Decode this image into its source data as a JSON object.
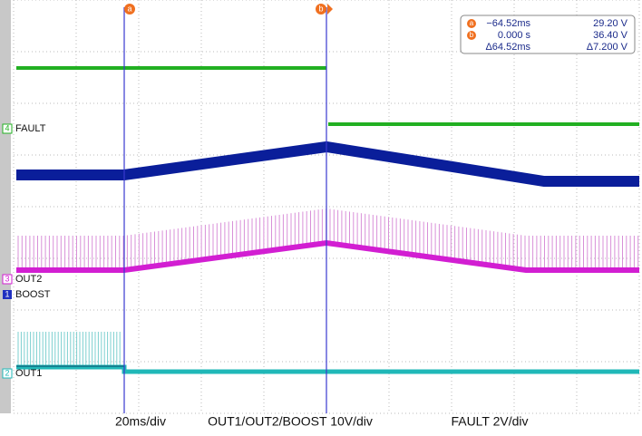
{
  "cursors": {
    "a": {
      "marker": "a",
      "time": "−64.52ms",
      "voltage": "29.20 V"
    },
    "b": {
      "marker": "b",
      "time": "0.000 s",
      "voltage": "36.40 V"
    },
    "delta": {
      "time": "Δ64.52ms",
      "voltage": "Δ7.200 V"
    }
  },
  "channels": [
    {
      "number": "4",
      "label": "FAULT"
    },
    {
      "number": "3",
      "label": "OUT2"
    },
    {
      "number": "1",
      "label": "BOOST"
    },
    {
      "number": "2",
      "label": "OUT1"
    }
  ],
  "footer": {
    "timebase": "20ms/div",
    "scale_main": "OUT1/OUT2/BOOST 10V/div",
    "scale_fault": "FAULT 2V/div"
  }
}
